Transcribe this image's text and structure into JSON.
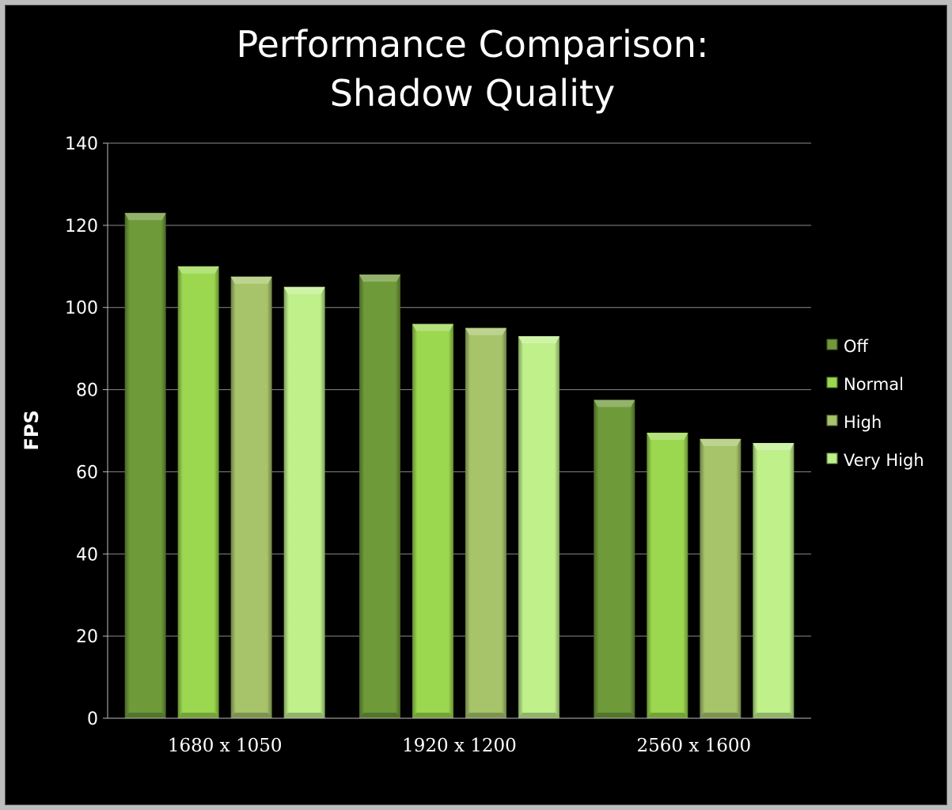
{
  "chart_data": {
    "type": "bar",
    "title_lines": [
      "Performance Comparison:",
      "Shadow Quality"
    ],
    "ylabel": "FPS",
    "xlabel": "",
    "ylim": [
      0,
      140
    ],
    "yticks": [
      0,
      20,
      40,
      60,
      80,
      100,
      120,
      140
    ],
    "grid": true,
    "legend_position": "right",
    "categories": [
      "1680 x 1050",
      "1920 x 1200",
      "2560 x 1600"
    ],
    "series": [
      {
        "name": "Off",
        "values": [
          123,
          108,
          77.5
        ],
        "color": "#6f9a3a"
      },
      {
        "name": "Normal",
        "values": [
          110,
          96,
          69.5
        ],
        "color": "#9bd84f"
      },
      {
        "name": "High",
        "values": [
          107.5,
          95,
          68
        ],
        "color": "#a7c46a"
      },
      {
        "name": "Very High",
        "values": [
          105,
          93,
          67
        ],
        "color": "#bff08a"
      }
    ]
  }
}
